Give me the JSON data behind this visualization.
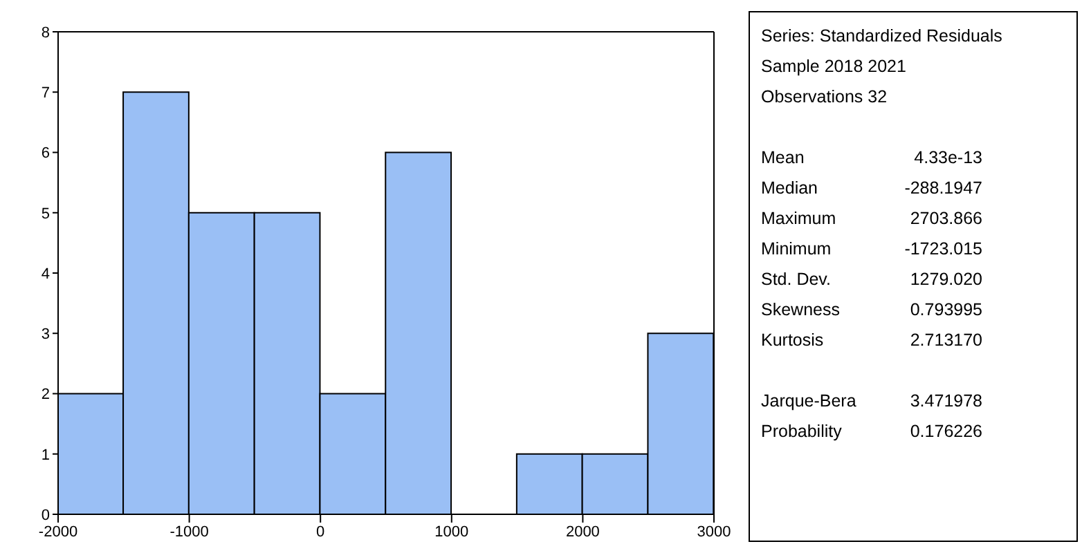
{
  "chart_data": [
    {
      "type": "histogram",
      "bins": [
        -2000,
        -1500,
        -1000,
        -500,
        0,
        500,
        1000,
        1500,
        2000,
        2500,
        3000
      ],
      "values": [
        2,
        7,
        5,
        5,
        2,
        6,
        0,
        1,
        1,
        3
      ],
      "color": "#9abff5",
      "xlim": [
        -2000,
        3000
      ],
      "xticks": [
        -2000,
        -1000,
        0,
        1000,
        2000,
        3000
      ],
      "ylim": [
        0,
        8
      ],
      "yticks": [
        0,
        1,
        2,
        3,
        4,
        5,
        6,
        7,
        8
      ]
    },
    {
      "type": "other",
      "annotations": [
        "Series: Standardized Residuals",
        "Sample 2018 2021",
        "Observations 32",
        "Mean",
        "4.33e-13",
        "Median",
        "-288.1947",
        "Maximum",
        "2703.866",
        "Minimum",
        "-1723.015",
        "Std. Dev.",
        "1279.020",
        "Skewness",
        "0.793995",
        "Kurtosis",
        "2.713170",
        "Jarque-Bera",
        "3.471978",
        "Probability",
        "0.176226"
      ]
    }
  ]
}
